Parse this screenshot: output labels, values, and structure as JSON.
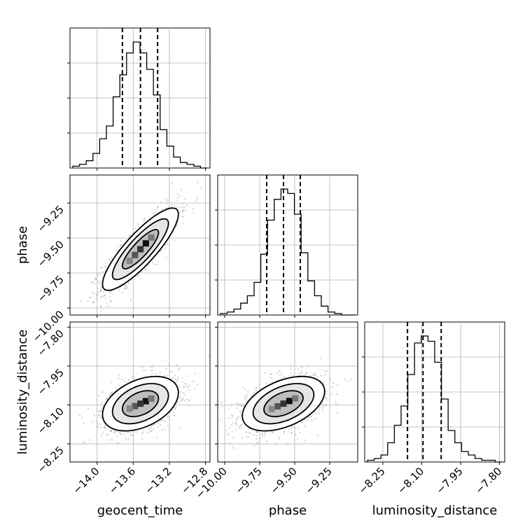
{
  "chart_data": {
    "type": "corner",
    "grid": true,
    "params": [
      {
        "name": "geocent_time",
        "range": [
          -14.3,
          -12.75
        ],
        "ticks": [
          "−14.0",
          "−13.6",
          "−13.2",
          "−12.8"
        ],
        "tick_values": [
          -14.0,
          -13.6,
          -13.2,
          -12.8
        ],
        "quantiles": [
          -13.72,
          -13.52,
          -13.33
        ]
      },
      {
        "name": "phase",
        "range": [
          -10.05,
          -9.05
        ],
        "ticks": [
          "−10.00",
          "−9.75",
          "−9.50",
          "−9.25"
        ],
        "tick_values": [
          -10.0,
          -9.75,
          -9.5,
          -9.25
        ],
        "quantiles": [
          -9.7,
          -9.58,
          -9.46
        ]
      },
      {
        "name": "luminosity_distance",
        "range": [
          -8.32,
          -7.78
        ],
        "ticks": [
          "−8.25",
          "−8.10",
          "−7.95",
          "−7.80"
        ],
        "tick_values": [
          -8.25,
          -8.1,
          -7.95,
          -7.8
        ],
        "quantiles": [
          -8.155,
          -8.095,
          -8.025
        ]
      }
    ],
    "histograms": [
      [
        1,
        2,
        4,
        8,
        16,
        23,
        39,
        51,
        63,
        69,
        63,
        54,
        40,
        21,
        12,
        6,
        3,
        2,
        1,
        0
      ],
      [
        1,
        2,
        4,
        8,
        13,
        22,
        41,
        64,
        78,
        85,
        82,
        68,
        42,
        23,
        13,
        6,
        2,
        1,
        0,
        0
      ],
      [
        1,
        2,
        4,
        11,
        21,
        32,
        50,
        68,
        72,
        69,
        57,
        36,
        18,
        11,
        6,
        4,
        2,
        1,
        1,
        0
      ]
    ],
    "pairs": [
      {
        "x": 0,
        "y": 1,
        "center": [
          -13.52,
          -9.58
        ],
        "sd": [
          0.2,
          0.14
        ],
        "corr": 0.85
      },
      {
        "x": 0,
        "y": 2,
        "center": [
          -13.52,
          -8.095
        ],
        "sd": [
          0.2,
          0.05
        ],
        "corr": 0.4
      },
      {
        "x": 1,
        "y": 2,
        "center": [
          -9.58,
          -8.095
        ],
        "sd": [
          0.14,
          0.05
        ],
        "corr": 0.45
      }
    ]
  }
}
